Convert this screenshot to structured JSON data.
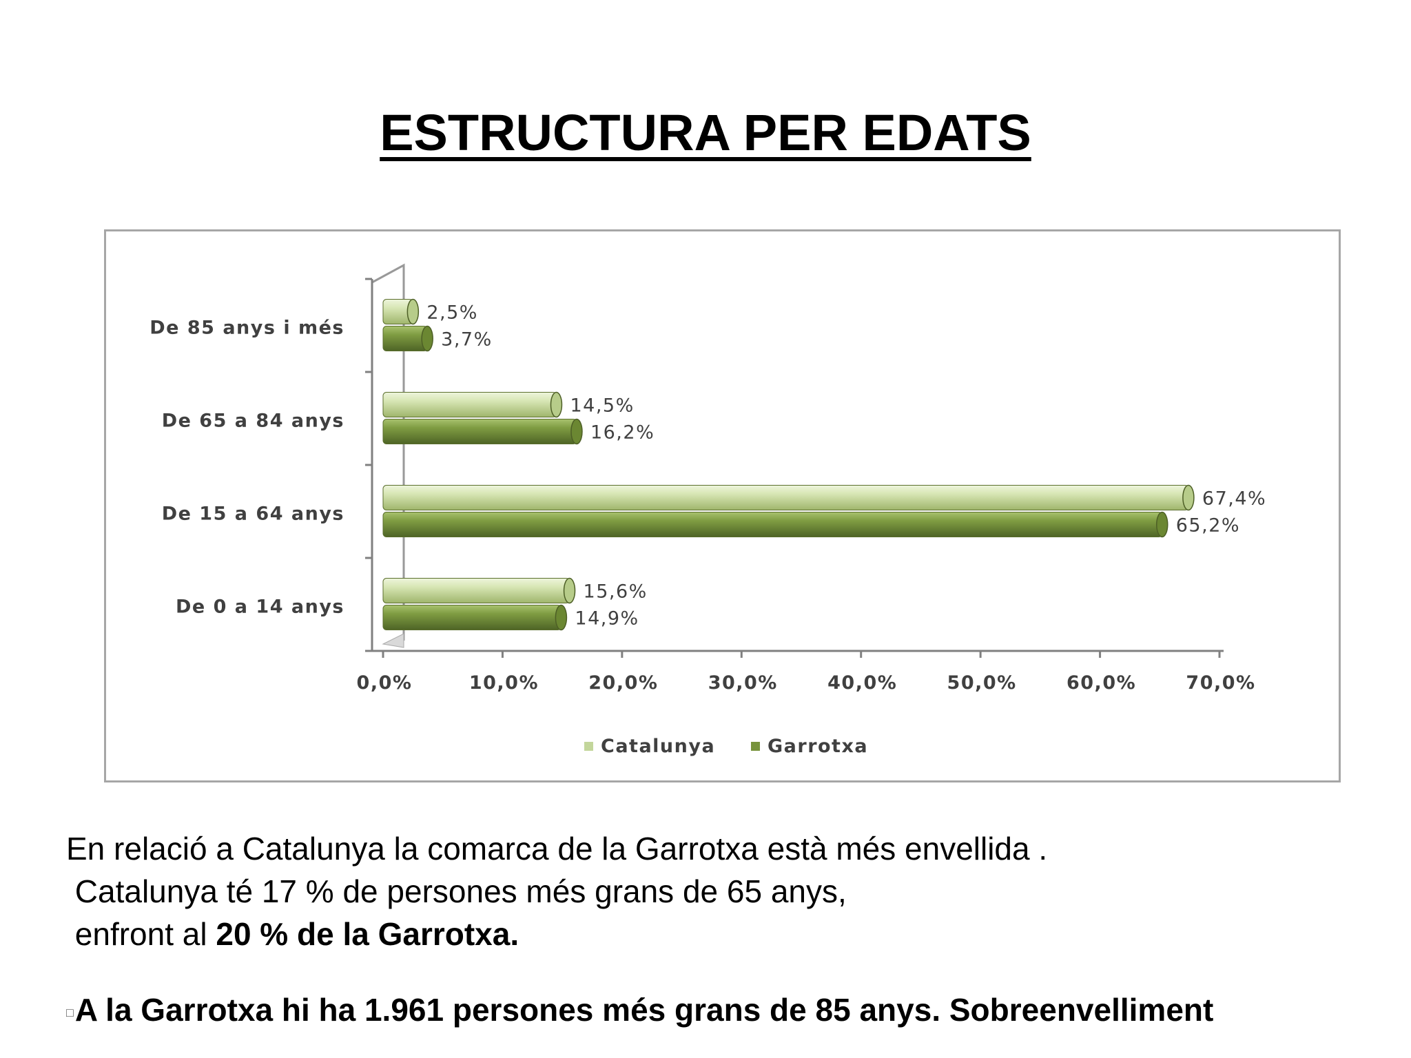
{
  "title": "ESTRUCTURA PER EDATS",
  "chart_data": {
    "type": "bar",
    "orientation": "horizontal",
    "categories": [
      "De 85 anys i més",
      "De 65 a 84 anys",
      "De 15 a 64 anys",
      "De 0 a 14 anys"
    ],
    "series": [
      {
        "name": "Catalunya",
        "color": "#c3d69b",
        "values": [
          2.5,
          14.5,
          67.4,
          15.6
        ],
        "labels": [
          "2,5%",
          "14,5%",
          "67,4%",
          "15,6%"
        ]
      },
      {
        "name": "Garrotxa",
        "color": "#77933c",
        "values": [
          3.7,
          16.2,
          65.2,
          14.9
        ],
        "labels": [
          "3,7%",
          "16,2%",
          "65,2%",
          "14,9%"
        ]
      }
    ],
    "xlim": [
      0,
      70
    ],
    "xticks": [
      "0,0%",
      "10,0%",
      "20,0%",
      "30,0%",
      "40,0%",
      "50,0%",
      "60,0%",
      "70,0%"
    ],
    "legend_position": "bottom"
  },
  "body": {
    "line1": "En relació a Catalunya la comarca de la Garrotxa està més envellida .",
    "line2": " Catalunya té 17 % de persones més grans de 65 anys,",
    "line3_prefix": " enfront al ",
    "line3_bold": "20 % de la Garrotxa.",
    "bullet_icon": "□",
    "line4": "A la Garrotxa hi ha 1.961 persones més grans de 85 anys. Sobreenvelliment"
  }
}
